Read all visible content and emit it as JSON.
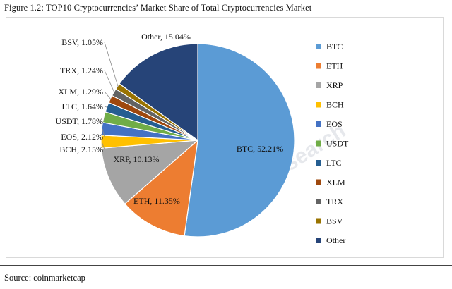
{
  "figure_title": "Figure 1.2: TOP10 Cryptocurrencies’ Market Share of Total Cryptocurrencies Market",
  "source": "Source: coinmarketcap",
  "watermark": "Huobi Research",
  "chart_data": {
    "type": "pie",
    "title": "",
    "legend_position": "right",
    "series": [
      {
        "name": "BTC",
        "value": 52.21,
        "label": "BTC, 52.21%",
        "color": "#5b9bd5"
      },
      {
        "name": "ETH",
        "value": 11.35,
        "label": "ETH, 11.35%",
        "color": "#ed7d31"
      },
      {
        "name": "XRP",
        "value": 10.13,
        "label": "XRP, 10.13%",
        "color": "#a5a5a5"
      },
      {
        "name": "BCH",
        "value": 2.15,
        "label": "BCH, 2.15%",
        "color": "#ffc000"
      },
      {
        "name": "EOS",
        "value": 2.12,
        "label": "EOS, 2.12%",
        "color": "#4472c4"
      },
      {
        "name": "USDT",
        "value": 1.78,
        "label": "USDT, 1.78%",
        "color": "#70ad47"
      },
      {
        "name": "LTC",
        "value": 1.64,
        "label": "LTC, 1.64%",
        "color": "#255e91"
      },
      {
        "name": "XLM",
        "value": 1.29,
        "label": "XLM, 1.29%",
        "color": "#9e480e"
      },
      {
        "name": "TRX",
        "value": 1.24,
        "label": "TRX, 1.24%",
        "color": "#636363"
      },
      {
        "name": "BSV",
        "value": 1.05,
        "label": "BSV, 1.05%",
        "color": "#997300"
      },
      {
        "name": "Other",
        "value": 15.04,
        "label": "Other, 15.04%",
        "color": "#264478"
      }
    ]
  }
}
